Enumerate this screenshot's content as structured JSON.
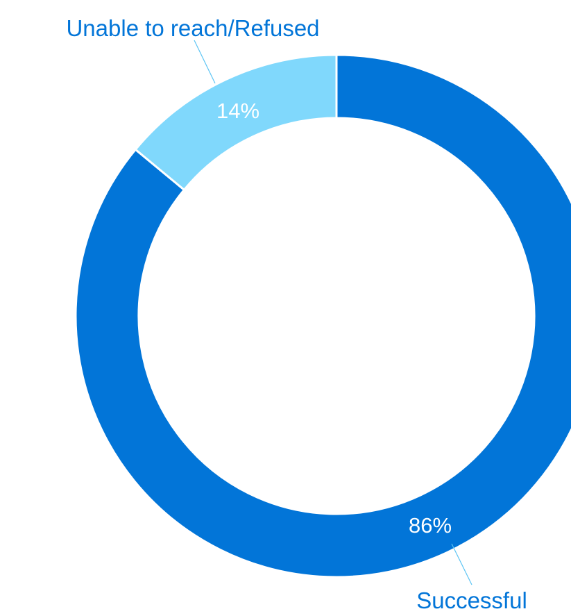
{
  "chart_data": {
    "type": "pie",
    "variant": "donut",
    "slices": [
      {
        "label": "Successful",
        "value": 86,
        "value_label": "86%",
        "color": "#0275d8"
      },
      {
        "label": "Unable to reach/Refused",
        "value": 14,
        "value_label": "14%",
        "color": "#80d8fc"
      }
    ],
    "label_color": "#0275d8",
    "leader_line_color": "#5bc4f4",
    "value_label_color": "#ffffff",
    "start": "12 o'clock",
    "direction": "clockwise",
    "legend": "none"
  }
}
